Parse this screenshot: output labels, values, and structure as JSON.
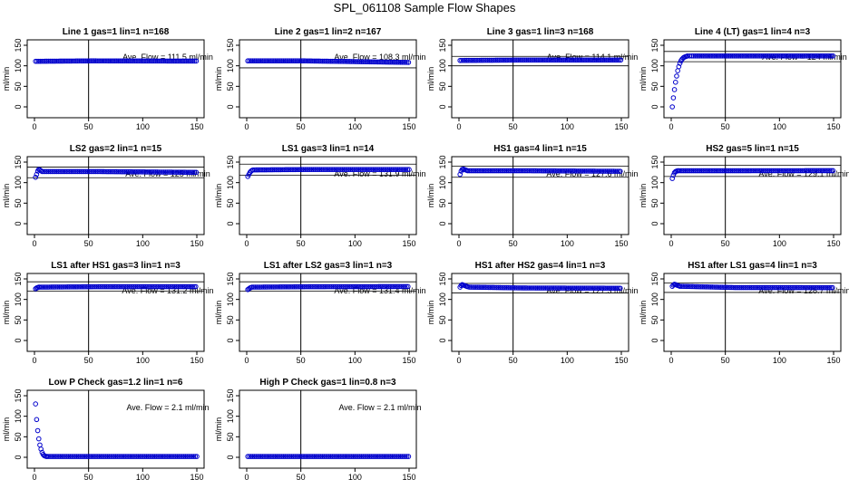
{
  "page": {
    "title": "SPL_061108  Sample Flow Shapes"
  },
  "chart_data": [
    {
      "type": "scatter",
      "title": "Line 1 gas=1 lin=1 n=168",
      "ylabel": "ml/min",
      "annotation": "Ave. Flow =  111.5  ml/min",
      "ave_flow": 111.5,
      "xlim": [
        0,
        150
      ],
      "ylim": [
        0,
        150
      ],
      "xticks": [
        0,
        50,
        100,
        150
      ],
      "yticks": [
        0,
        50,
        100,
        150
      ],
      "vline": 50,
      "hlines": [],
      "profile": {
        "start": 111,
        "peak": 112,
        "end": 111.5
      }
    },
    {
      "type": "scatter",
      "title": "Line 2 gas=1 lin=2 n=167",
      "ylabel": "ml/min",
      "annotation": "Ave. Flow =  108.3  ml/min",
      "ave_flow": 108.3,
      "xlim": [
        0,
        150
      ],
      "ylim": [
        0,
        150
      ],
      "xticks": [
        0,
        50,
        100,
        150
      ],
      "yticks": [
        0,
        50,
        100,
        150
      ],
      "vline": 50,
      "hlines": [
        95
      ],
      "profile": {
        "start": 112,
        "peak": 112,
        "end": 108.3
      }
    },
    {
      "type": "scatter",
      "title": "Line 3 gas=1 lin=3 n=168",
      "ylabel": "ml/min",
      "annotation": "Ave. Flow =  114.1  ml/min",
      "ave_flow": 114.1,
      "xlim": [
        0,
        150
      ],
      "ylim": [
        0,
        150
      ],
      "xticks": [
        0,
        50,
        100,
        150
      ],
      "yticks": [
        0,
        50,
        100,
        150
      ],
      "vline": 50,
      "hlines": [
        100,
        123
      ],
      "profile": {
        "start": 113,
        "peak": 114,
        "end": 114.1
      }
    },
    {
      "type": "scatter",
      "title": "Line 4 (LT) gas=1 lin=4 n=3",
      "ylabel": "ml/min",
      "annotation": "Ave. Flow =  124  ml/min",
      "ave_flow": 124,
      "xlim": [
        0,
        150
      ],
      "ylim": [
        0,
        150
      ],
      "xticks": [
        0,
        50,
        100,
        150
      ],
      "yticks": [
        0,
        50,
        100,
        150
      ],
      "vline": 50,
      "hlines": [
        110,
        135
      ],
      "series": [
        {
          "x": [
            1,
            2,
            3,
            4,
            5,
            6,
            7,
            8,
            9,
            10,
            11,
            12,
            13,
            14,
            15,
            17,
            19
          ],
          "y": [
            0,
            22,
            42,
            60,
            75,
            88,
            98,
            106,
            112,
            116,
            119,
            121,
            122,
            123,
            124,
            124,
            124
          ]
        }
      ],
      "profile": {
        "start": 124,
        "peak": 124,
        "end": 124
      }
    },
    {
      "type": "scatter",
      "title": "LS2 gas=2 lin=1 n=15",
      "ylabel": "ml/min",
      "annotation": "Ave. Flow =  125  ml/min",
      "ave_flow": 125,
      "xlim": [
        0,
        150
      ],
      "ylim": [
        0,
        150
      ],
      "xticks": [
        0,
        50,
        100,
        150
      ],
      "yticks": [
        0,
        50,
        100,
        150
      ],
      "vline": 50,
      "hlines": [
        112,
        138
      ],
      "series": [
        {
          "x": [
            1,
            2,
            3,
            4,
            5,
            6,
            7
          ],
          "y": [
            113,
            120,
            128,
            132,
            131,
            129,
            127
          ]
        }
      ],
      "profile": {
        "start": 127,
        "peak": 127,
        "end": 125
      }
    },
    {
      "type": "scatter",
      "title": "LS1 gas=3 lin=1 n=14",
      "ylabel": "ml/min",
      "annotation": "Ave. Flow =  131.9  ml/min",
      "ave_flow": 131.9,
      "xlim": [
        0,
        150
      ],
      "ylim": [
        0,
        150
      ],
      "xticks": [
        0,
        50,
        100,
        150
      ],
      "yticks": [
        0,
        50,
        100,
        150
      ],
      "vline": 50,
      "hlines": [
        118,
        145
      ],
      "series": [
        {
          "x": [
            1,
            2,
            3,
            4,
            5,
            6
          ],
          "y": [
            115,
            120,
            125,
            128,
            130,
            131
          ]
        }
      ],
      "profile": {
        "start": 131,
        "peak": 132,
        "end": 131.9
      }
    },
    {
      "type": "scatter",
      "title": "HS1 gas=4 lin=1 n=15",
      "ylabel": "ml/min",
      "annotation": "Ave. Flow =  127.6  ml/min",
      "ave_flow": 127.6,
      "xlim": [
        0,
        150
      ],
      "ylim": [
        0,
        150
      ],
      "xticks": [
        0,
        50,
        100,
        150
      ],
      "yticks": [
        0,
        50,
        100,
        150
      ],
      "vline": 50,
      "hlines": [
        113,
        140
      ],
      "series": [
        {
          "x": [
            1,
            2,
            3,
            4,
            5,
            6,
            7,
            8
          ],
          "y": [
            120,
            128,
            132,
            133,
            132,
            131,
            130,
            129
          ]
        }
      ],
      "profile": {
        "start": 129,
        "peak": 129,
        "end": 127.6
      }
    },
    {
      "type": "scatter",
      "title": "HS2 gas=5 lin=1 n=15",
      "ylabel": "ml/min",
      "annotation": "Ave. Flow =  129.1  ml/min",
      "ave_flow": 129.1,
      "xlim": [
        0,
        150
      ],
      "ylim": [
        0,
        150
      ],
      "xticks": [
        0,
        50,
        100,
        150
      ],
      "yticks": [
        0,
        50,
        100,
        150
      ],
      "vline": 50,
      "hlines": [
        115,
        142
      ],
      "series": [
        {
          "x": [
            1,
            2,
            3,
            4,
            5,
            6,
            7
          ],
          "y": [
            110,
            118,
            124,
            127,
            128,
            129,
            129
          ]
        }
      ],
      "profile": {
        "start": 129,
        "peak": 129,
        "end": 129.1
      }
    },
    {
      "type": "scatter",
      "title": "LS1 after HS1 gas=3 lin=1 n=3",
      "ylabel": "ml/min",
      "annotation": "Ave. Flow =  131.2  ml/min",
      "ave_flow": 131.2,
      "xlim": [
        0,
        150
      ],
      "ylim": [
        0,
        150
      ],
      "xticks": [
        0,
        50,
        100,
        150
      ],
      "yticks": [
        0,
        50,
        100,
        150
      ],
      "vline": 50,
      "hlines": [
        120,
        143
      ],
      "series": [
        {
          "x": [
            1,
            2,
            3,
            4,
            5
          ],
          "y": [
            126,
            128,
            129,
            130,
            130
          ]
        }
      ],
      "profile": {
        "start": 130,
        "peak": 131,
        "end": 131.2
      }
    },
    {
      "type": "scatter",
      "title": "LS1 after LS2 gas=3 lin=1 n=3",
      "ylabel": "ml/min",
      "annotation": "Ave. Flow =  131.4  ml/min",
      "ave_flow": 131.4,
      "xlim": [
        0,
        150
      ],
      "ylim": [
        0,
        150
      ],
      "xticks": [
        0,
        50,
        100,
        150
      ],
      "yticks": [
        0,
        50,
        100,
        150
      ],
      "vline": 50,
      "hlines": [
        120,
        143
      ],
      "series": [
        {
          "x": [
            1,
            2,
            3,
            4,
            5
          ],
          "y": [
            124,
            126,
            128,
            129,
            130
          ]
        }
      ],
      "profile": {
        "start": 130,
        "peak": 131,
        "end": 131.4
      }
    },
    {
      "type": "scatter",
      "title": "HS1 after HS2 gas=4 lin=1 n=3",
      "ylabel": "ml/min",
      "annotation": "Ave. Flow =  127.3  ml/min",
      "ave_flow": 127.3,
      "xlim": [
        0,
        150
      ],
      "ylim": [
        0,
        150
      ],
      "xticks": [
        0,
        50,
        100,
        150
      ],
      "yticks": [
        0,
        50,
        100,
        150
      ],
      "vline": 50,
      "hlines": [
        116,
        139
      ],
      "series": [
        {
          "x": [
            1,
            2,
            3,
            4,
            5,
            6,
            7,
            8
          ],
          "y": [
            130,
            134,
            136,
            135,
            134,
            133,
            132,
            131
          ]
        }
      ],
      "profile": {
        "start": 130,
        "peak": 128,
        "end": 127.3
      }
    },
    {
      "type": "scatter",
      "title": "HS1 after LS1 gas=4 lin=1 n=3",
      "ylabel": "ml/min",
      "annotation": "Ave. Flow =  128.7  ml/min",
      "ave_flow": 128.7,
      "xlim": [
        0,
        150
      ],
      "ylim": [
        0,
        150
      ],
      "xticks": [
        0,
        50,
        100,
        150
      ],
      "yticks": [
        0,
        50,
        100,
        150
      ],
      "vline": 50,
      "hlines": [
        117,
        140
      ],
      "series": [
        {
          "x": [
            1,
            2,
            3,
            4,
            5,
            6,
            7,
            8
          ],
          "y": [
            132,
            135,
            137,
            136,
            135,
            134,
            133,
            132
          ]
        }
      ],
      "profile": {
        "start": 132,
        "peak": 129,
        "end": 128.7
      }
    },
    {
      "type": "scatter",
      "title": "Low P Check gas=1.2 lin=1 n=6",
      "ylabel": "ml/min",
      "annotation": "Ave. Flow =  2.1  ml/min",
      "ave_flow": 2.1,
      "xlim": [
        0,
        150
      ],
      "ylim": [
        0,
        150
      ],
      "xticks": [
        0,
        50,
        100,
        150
      ],
      "yticks": [
        0,
        50,
        100,
        150
      ],
      "vline": 50,
      "hlines": [],
      "series": [
        {
          "x": [
            1,
            2,
            3,
            4,
            5,
            6,
            7,
            8,
            9,
            10,
            11,
            12
          ],
          "y": [
            130,
            92,
            65,
            45,
            30,
            20,
            12,
            7,
            4,
            3,
            2,
            2
          ]
        }
      ],
      "profile": {
        "start": 2,
        "peak": 2,
        "end": 2
      }
    },
    {
      "type": "scatter",
      "title": "High P Check gas=1 lin=0.8 n=3",
      "ylabel": "ml/min",
      "annotation": "Ave. Flow =  2.1  ml/min",
      "ave_flow": 2.1,
      "xlim": [
        0,
        150
      ],
      "ylim": [
        0,
        150
      ],
      "xticks": [
        0,
        50,
        100,
        150
      ],
      "yticks": [
        0,
        50,
        100,
        150
      ],
      "vline": 50,
      "hlines": [],
      "profile": {
        "start": 2,
        "peak": 2,
        "end": 2
      }
    }
  ]
}
